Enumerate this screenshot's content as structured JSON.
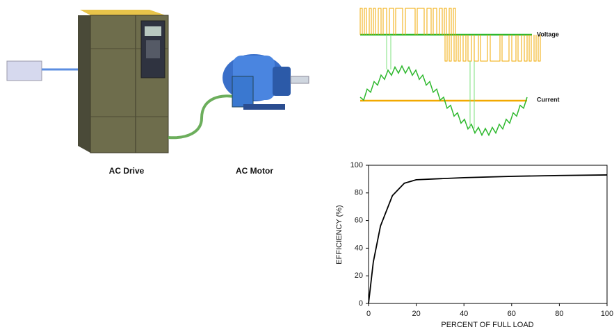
{
  "diagram": {
    "drive_label": "AC Drive",
    "motor_label": "AC Motor",
    "voltage_label": "Voltage",
    "current_label": "Current"
  },
  "chart_data": {
    "type": "line",
    "x_label": "PERCENT OF FULL LOAD",
    "y_label": "EFFICIENCY (%)",
    "x": [
      0,
      2,
      5,
      10,
      15,
      20,
      30,
      40,
      60,
      80,
      100
    ],
    "values": [
      0,
      30,
      56,
      78,
      87,
      89.5,
      90.3,
      91,
      92,
      92.6,
      93
    ],
    "color": "#000000",
    "xlim": [
      0,
      100
    ],
    "xticks": [
      0,
      20,
      40,
      60,
      80,
      100
    ],
    "ylim": [
      0,
      100
    ],
    "yticks": [
      0,
      20,
      40,
      60,
      80,
      100
    ]
  }
}
